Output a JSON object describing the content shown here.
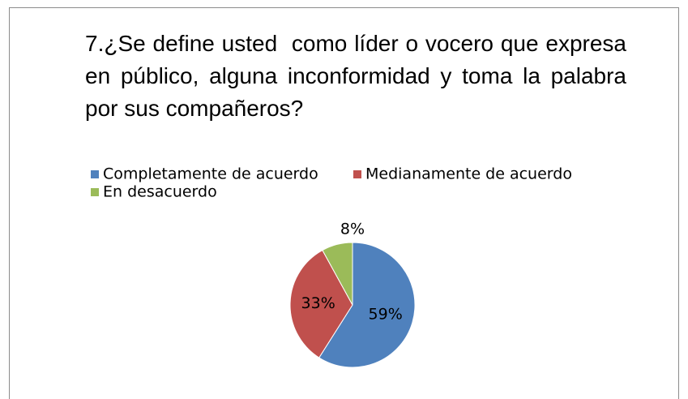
{
  "chart_data": {
    "type": "pie",
    "title": "7.¿Se define usted  como líder o vocero que expresa en público, alguna inconformidad y toma la palabra por sus compañeros?",
    "categories": [
      "Completamente de acuerdo",
      "Medianamente de acuerdo",
      "En desacuerdo"
    ],
    "values": [
      59,
      33,
      8
    ],
    "value_labels": [
      "59%",
      "33%",
      "8%"
    ],
    "colors": [
      "#4f81bd",
      "#c0504d",
      "#9bbb59"
    ]
  }
}
